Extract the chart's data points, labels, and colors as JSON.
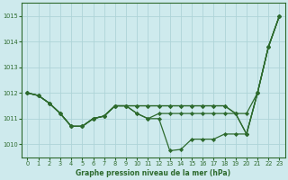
{
  "title": "Graphe pression niveau de la mer (hPa)",
  "bg_color": "#ceeaed",
  "grid_color": "#aed4d8",
  "line_color": "#2d6a2d",
  "xlim": [
    -0.5,
    23.5
  ],
  "ylim": [
    1009.5,
    1015.5
  ],
  "yticks": [
    1010,
    1011,
    1012,
    1013,
    1014,
    1015
  ],
  "xticks": [
    0,
    1,
    2,
    3,
    4,
    5,
    6,
    7,
    8,
    9,
    10,
    11,
    12,
    13,
    14,
    15,
    16,
    17,
    18,
    19,
    20,
    21,
    22,
    23
  ],
  "series": [
    [
      1012.0,
      1011.9,
      1011.6,
      1011.2,
      1010.7,
      1010.7,
      1011.0,
      1011.1,
      1011.5,
      1011.5,
      1011.5,
      1011.5,
      1011.5,
      1011.5,
      1011.5,
      1011.5,
      1011.5,
      1011.5,
      1011.5,
      1011.2,
      1011.2,
      1012.0,
      1013.8,
      1015.0
    ],
    [
      1012.0,
      1011.9,
      1011.6,
      1011.2,
      1010.7,
      1010.7,
      1011.0,
      1011.1,
      1011.5,
      1011.5,
      1011.5,
      1011.5,
      1011.5,
      1011.5,
      1011.5,
      1011.5,
      1011.5,
      1011.5,
      1011.5,
      1011.2,
      1010.4,
      1012.0,
      1013.8,
      1015.0
    ],
    [
      1012.0,
      1011.9,
      1011.6,
      1011.2,
      1010.7,
      1010.7,
      1011.0,
      1011.1,
      1011.5,
      1011.5,
      1011.2,
      1011.0,
      1011.2,
      1011.2,
      1011.2,
      1011.2,
      1011.2,
      1011.2,
      1011.2,
      1011.2,
      1010.4,
      1012.0,
      1013.8,
      1015.0
    ],
    [
      1012.0,
      1011.9,
      1011.6,
      1011.2,
      1010.7,
      1010.7,
      1011.0,
      1011.1,
      1011.5,
      1011.5,
      1011.2,
      1011.0,
      1011.0,
      1009.75,
      1009.8,
      1010.2,
      1010.2,
      1010.2,
      1010.4,
      1010.4,
      1010.4,
      1012.0,
      1013.8,
      1015.0
    ]
  ],
  "lw": 0.9,
  "markersize": 2.2,
  "tick_fontsize": 4.8,
  "xlabel_fontsize": 5.5
}
